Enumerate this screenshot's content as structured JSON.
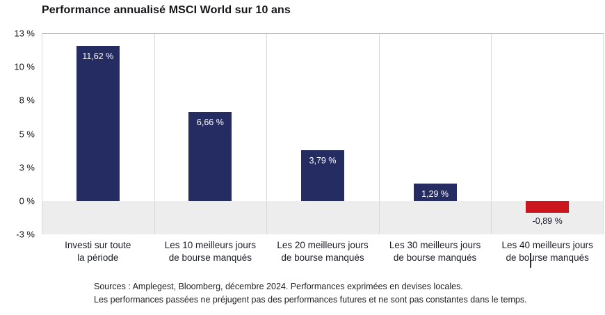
{
  "chart_data": {
    "type": "bar",
    "title": "Performance annualisé MSCI World sur 10 ans",
    "categories": [
      [
        "Investi sur toute",
        "la période"
      ],
      [
        "Les 10 meilleurs jours",
        "de bourse manqués"
      ],
      [
        "Les 20 meilleurs jours",
        "de bourse manqués"
      ],
      [
        "Les 30 meilleurs jours",
        "de bourse manqués"
      ],
      [
        "Les 40 meilleurs jours",
        "de bourse manqués"
      ]
    ],
    "values": [
      11.62,
      6.66,
      3.79,
      1.29,
      -0.89
    ],
    "value_labels": [
      "11,62 %",
      "6,66 %",
      "3,79 %",
      "1,29 %",
      "-0,89 %"
    ],
    "ylim": [
      -2.5,
      12.5
    ],
    "ytick_labels": [
      "13 %",
      "10 %",
      "8 %",
      "5 %",
      "3 %",
      "0 %",
      "-3 %"
    ],
    "bar_color": "#252c62",
    "negative_bar_color": "#cc161d",
    "negative_band_color": "#ededed",
    "grid": true,
    "legend": "none",
    "xlabel": "",
    "ylabel": ""
  },
  "footer": {
    "line1": "Sources : Amplegest, Bloomberg, décembre 2024. Performances exprimées en devises locales.",
    "line2": "Les performances passées ne préjugent pas des performances futures et ne sont pas constantes dans le temps."
  }
}
